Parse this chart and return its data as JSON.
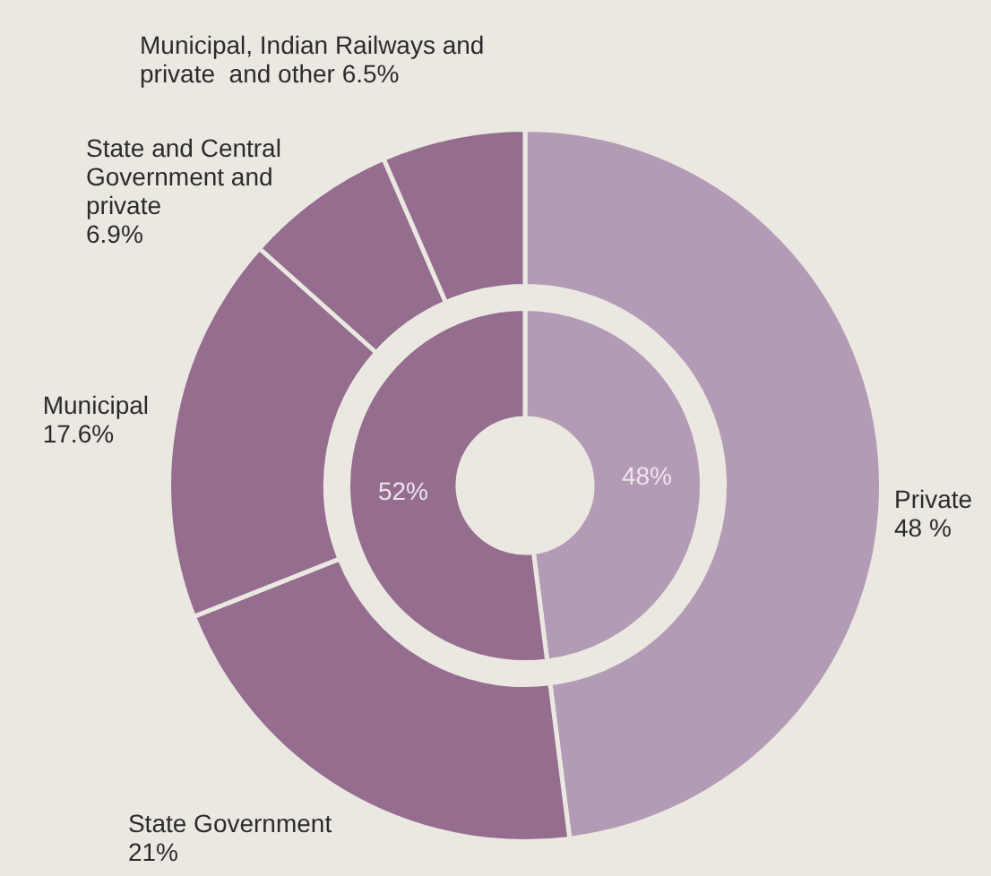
{
  "chart_data": [
    {
      "type": "donut",
      "categories": [
        "Private",
        "State Government",
        "Municipal",
        "State and Central Government and private",
        "Municipal, Indian Railways and private  and other"
      ],
      "values": [
        48,
        21,
        17.6,
        6.9,
        6.5
      ],
      "colors": [
        "#b39bb5",
        "#956d8f",
        "#956d8f",
        "#956d8f",
        "#956d8f"
      ],
      "value_labels": [
        "48 %",
        "21%",
        "17.6%",
        "6.9%",
        "6.5%"
      ]
    },
    {
      "type": "donut",
      "categories": [
        null,
        null
      ],
      "values": [
        48,
        52
      ],
      "colors": [
        "#b39bb5",
        "#956d8f"
      ],
      "value_labels": [
        "48%",
        "52%"
      ]
    }
  ]
}
